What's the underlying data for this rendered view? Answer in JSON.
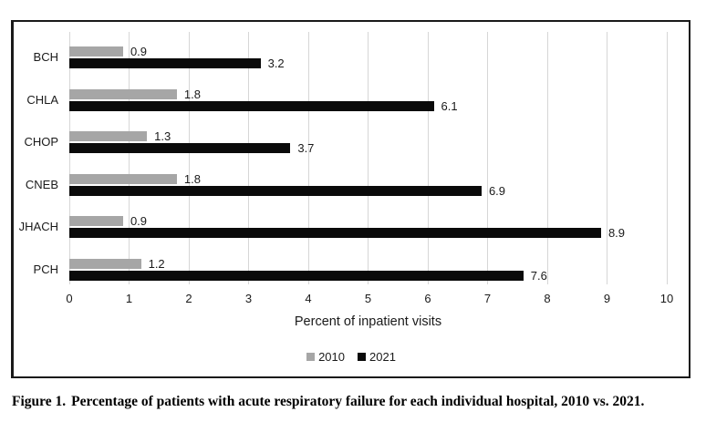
{
  "caption": {
    "prefix": "Figure 1.",
    "text": "Percentage of patients with acute respiratory failure for each individual hospital, 2010 vs. 2021."
  },
  "chart_data": {
    "type": "bar",
    "orientation": "horizontal",
    "title": "",
    "categories": [
      "BCH",
      "CHLA",
      "CHOP",
      "CNEB",
      "JHACH",
      "PCH"
    ],
    "series": [
      {
        "name": "2010",
        "color": "#a6a6a6",
        "values": [
          0.9,
          1.8,
          1.3,
          1.8,
          0.9,
          1.2
        ]
      },
      {
        "name": "2021",
        "color": "#0a0a0a",
        "values": [
          3.2,
          6.1,
          3.7,
          6.9,
          8.9,
          7.6
        ]
      }
    ],
    "value_labels": [
      "0.9",
      "3.2",
      "1.8",
      "6.1",
      "1.3",
      "3.7",
      "1.8",
      "6.9",
      "0.9",
      "8.9",
      "1.2",
      "7.6"
    ],
    "xlabel": "Percent of inpatient visits",
    "xlim": [
      0,
      10
    ],
    "xticks": [
      "0",
      "1",
      "2",
      "3",
      "4",
      "5",
      "6",
      "7",
      "8",
      "9",
      "10"
    ],
    "grid": "vertical-gridlines-on",
    "gridline_color": "#d6d6d6",
    "legend_position": "bottom",
    "legend": [
      "2010",
      "2021"
    ]
  }
}
